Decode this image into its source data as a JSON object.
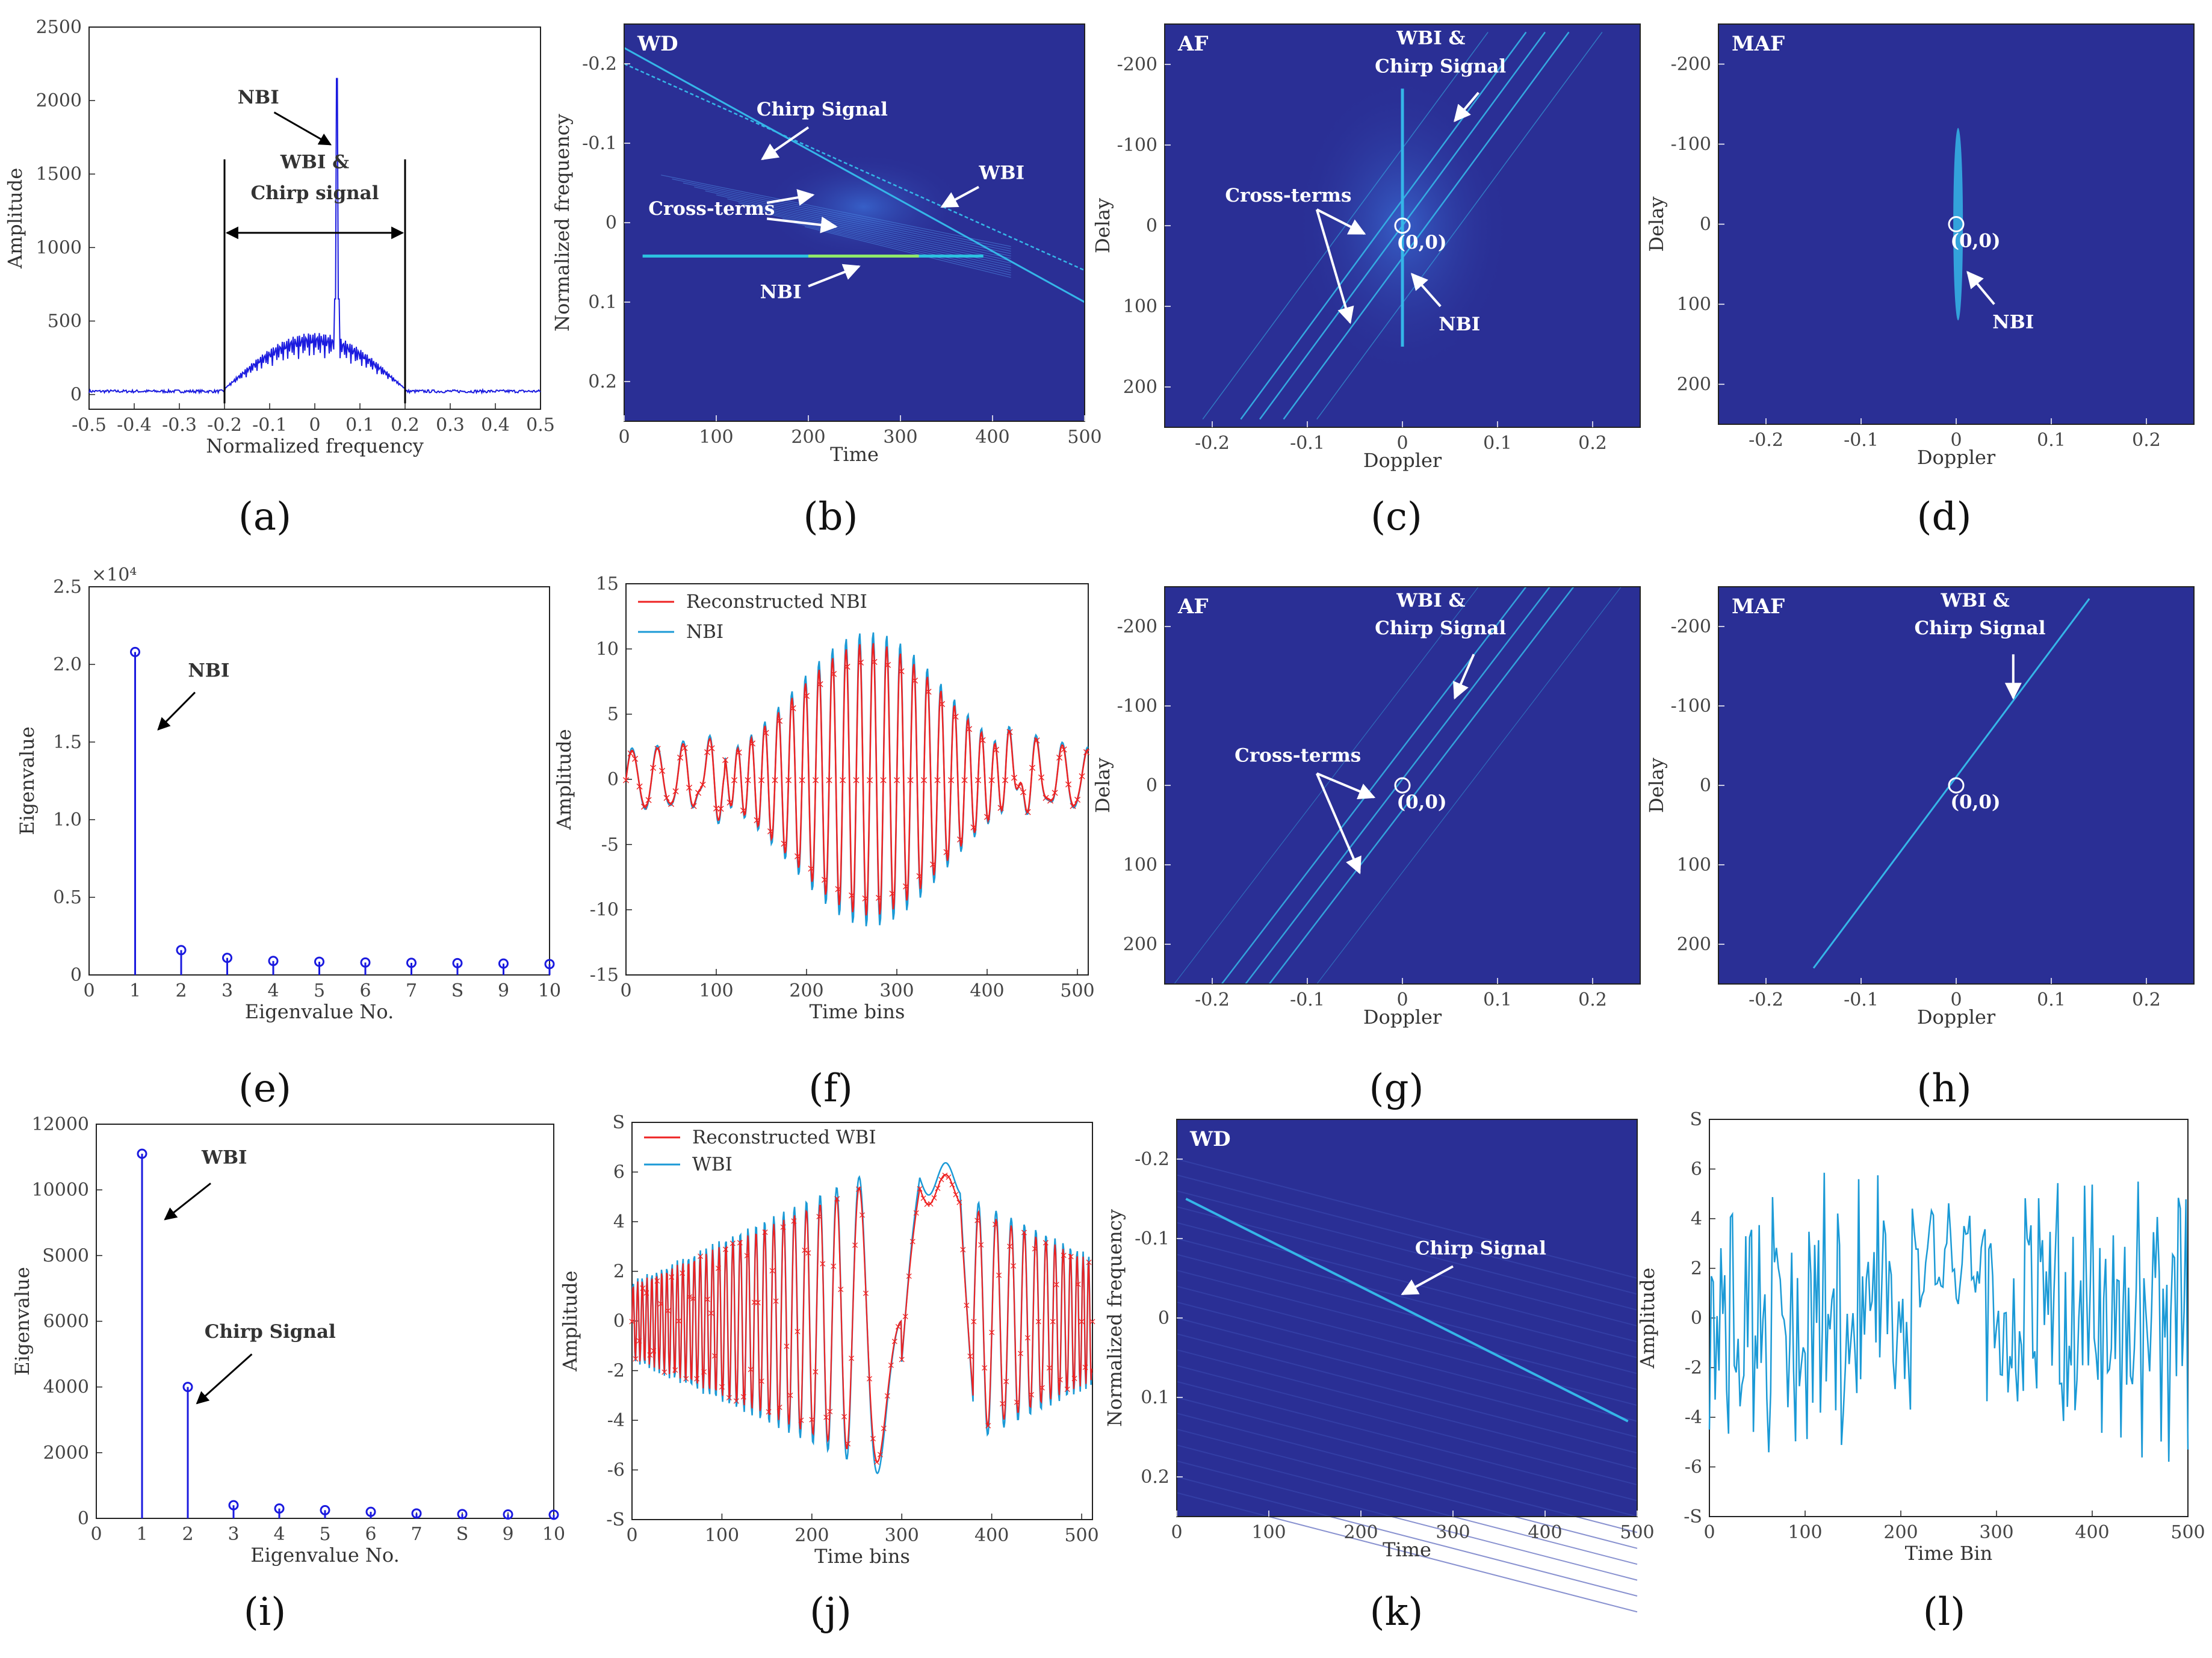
{
  "colors": {
    "blue_line": "#1a1adf",
    "cyan_line": "#1b9ad6",
    "red_line": "#ee2222",
    "map_bg": "#2a2f95",
    "map_line": "#35b6e8",
    "map_bright": "#8fe86a",
    "annot": "#ffffff"
  },
  "chart_data": [
    {
      "id": "a",
      "type": "line",
      "caption": "(a)",
      "xlabel": "Normalized frequency",
      "ylabel": "Amplitude",
      "xlim": [
        -0.5,
        0.5
      ],
      "ylim": [
        -100,
        2500
      ],
      "xticks": [
        -0.5,
        -0.4,
        -0.3,
        -0.2,
        -0.1,
        0,
        0.1,
        0.2,
        0.3,
        0.4,
        0.5
      ],
      "xtick_labels": [
        "-0.5",
        "-0.4",
        "-0.3",
        "-0.2",
        "-0.1",
        "0",
        "0.1",
        "0.2",
        "0.3",
        "0.4",
        "0.5"
      ],
      "yticks": [
        0,
        500,
        1000,
        1500,
        2000,
        2500
      ],
      "ytick_labels": [
        "0",
        "500",
        "1000",
        "1500",
        "2000",
        "2500"
      ],
      "series": [
        {
          "name": "spectrum",
          "peak_x": 0.05,
          "peak_y": 2150,
          "band": [
            -0.2,
            0.2
          ],
          "band_peak": 380,
          "noise": 20
        }
      ],
      "annotations": {
        "nbi": "NBI",
        "wbi": "WBI &",
        "chirp": "Chirp signal"
      }
    },
    {
      "id": "b",
      "type": "heatmap",
      "caption": "(b)",
      "corner": "WD",
      "xlabel": "Time",
      "ylabel": "Normalized frequency",
      "xlim": [
        0,
        500
      ],
      "ylim": [
        0.25,
        -0.25
      ],
      "xticks": [
        0,
        100,
        200,
        300,
        400,
        500
      ],
      "xtick_labels": [
        "0",
        "100",
        "200",
        "300",
        "400",
        "500"
      ],
      "yticks": [
        -0.2,
        -0.1,
        0,
        0.1,
        0.2
      ],
      "ytick_labels": [
        "-0.2",
        "-0.1",
        "0",
        "0.1",
        "0.2"
      ],
      "annotations": {
        "chirp": "Chirp Signal",
        "cross": "Cross-terms",
        "wbi": "WBI",
        "nbi": "NBI"
      }
    },
    {
      "id": "c",
      "type": "heatmap",
      "caption": "(c)",
      "corner": "AF",
      "xlabel": "Doppler",
      "ylabel": "Delay",
      "xlim": [
        -0.25,
        0.25
      ],
      "ylim": [
        -250,
        250
      ],
      "xticks": [
        -0.2,
        -0.1,
        0,
        0.1,
        0.2
      ],
      "xtick_labels": [
        "-0.2",
        "-0.1",
        "0",
        "0.1",
        "0.2"
      ],
      "yticks": [
        -200,
        -100,
        0,
        100,
        200
      ],
      "ytick_labels": [
        "-200",
        "-100",
        "0",
        "100",
        "200"
      ],
      "annotations": {
        "wbi": "WBI &",
        "chirp": "Chirp Signal",
        "cross": "Cross-terms",
        "origin": "(0,0)",
        "nbi": "NBI"
      }
    },
    {
      "id": "d",
      "type": "heatmap",
      "caption": "(d)",
      "corner": "MAF",
      "xlabel": "Doppler",
      "ylabel": "Delay",
      "xlim": [
        -0.25,
        0.25
      ],
      "ylim": [
        -250,
        250
      ],
      "xticks": [
        -0.2,
        -0.1,
        0,
        0.1,
        0.2
      ],
      "xtick_labels": [
        "-0.2",
        "-0.1",
        "0",
        "0.1",
        "0.2"
      ],
      "yticks": [
        -200,
        -100,
        0,
        100,
        200
      ],
      "ytick_labels": [
        "-200",
        "-100",
        "0",
        "100",
        "200"
      ],
      "annotations": {
        "origin": "(0,0)",
        "nbi": "NBI"
      }
    },
    {
      "id": "e",
      "type": "stem",
      "caption": "(e)",
      "xlabel": "Eigenvalue No.",
      "ylabel": "Eigenvalue",
      "exponent": "×10⁴",
      "xlim": [
        0,
        10
      ],
      "ylim": [
        0,
        25000
      ],
      "xticks": [
        0,
        1,
        2,
        3,
        4,
        5,
        6,
        7,
        8,
        9,
        10
      ],
      "xtick_labels": [
        "0",
        "1",
        "2",
        "3",
        "4",
        "5",
        "6",
        "7",
        "S",
        "9",
        "10"
      ],
      "yticks": [
        0,
        5000,
        10000,
        15000,
        20000,
        25000
      ],
      "ytick_labels": [
        "0",
        "0.5",
        "1.0",
        "1.5",
        "2.0",
        "2.5"
      ],
      "x": [
        1,
        2,
        3,
        4,
        5,
        6,
        7,
        8,
        9,
        10
      ],
      "values": [
        20800,
        1600,
        1100,
        900,
        850,
        800,
        780,
        760,
        730,
        700
      ],
      "annotations": {
        "nbi": "NBI"
      }
    },
    {
      "id": "f",
      "type": "line",
      "caption": "(f)",
      "xlabel": "Time bins",
      "ylabel": "Amplitude",
      "xlim": [
        0,
        512
      ],
      "ylim": [
        -15,
        15
      ],
      "xticks": [
        0,
        100,
        200,
        300,
        400,
        500
      ],
      "xtick_labels": [
        "0",
        "100",
        "200",
        "300",
        "400",
        "500"
      ],
      "yticks": [
        -15,
        -10,
        -5,
        0,
        5,
        10,
        15
      ],
      "ytick_labels": [
        "-15",
        "-10",
        "-5",
        "0",
        "5",
        "10",
        "15"
      ],
      "legend": [
        "Reconstructed NBI",
        "NBI"
      ],
      "envelope_peak": 10.5,
      "center": 270,
      "width": 120,
      "period": 15
    },
    {
      "id": "g",
      "type": "heatmap",
      "caption": "(g)",
      "corner": "AF",
      "xlabel": "Doppler",
      "ylabel": "Delay",
      "xlim": [
        -0.25,
        0.25
      ],
      "ylim": [
        -250,
        250
      ],
      "xticks": [
        -0.2,
        -0.1,
        0,
        0.1,
        0.2
      ],
      "xtick_labels": [
        "-0.2",
        "-0.1",
        "0",
        "0.1",
        "0.2"
      ],
      "yticks": [
        -200,
        -100,
        0,
        100,
        200
      ],
      "ytick_labels": [
        "-200",
        "-100",
        "0",
        "100",
        "200"
      ],
      "annotations": {
        "wbi": "WBI &",
        "chirp": "Chirp Signal",
        "cross": "Cross-terms",
        "origin": "(0,0)"
      }
    },
    {
      "id": "h",
      "type": "heatmap",
      "caption": "(h)",
      "corner": "MAF",
      "xlabel": "Doppler",
      "ylabel": "Delay",
      "xlim": [
        -0.25,
        0.25
      ],
      "ylim": [
        -250,
        250
      ],
      "xticks": [
        -0.2,
        -0.1,
        0,
        0.1,
        0.2
      ],
      "xtick_labels": [
        "-0.2",
        "-0.1",
        "0",
        "0.1",
        "0.2"
      ],
      "yticks": [
        -200,
        -100,
        0,
        100,
        200
      ],
      "ytick_labels": [
        "-200",
        "-100",
        "0",
        "100",
        "200"
      ],
      "annotations": {
        "wbi": "WBI &",
        "chirp": "Chirp Signal",
        "origin": "(0,0)"
      }
    },
    {
      "id": "i",
      "type": "stem",
      "caption": "(i)",
      "xlabel": "Eigenvalue No.",
      "ylabel": "Eigenvalue",
      "xlim": [
        0,
        10
      ],
      "ylim": [
        0,
        12000
      ],
      "xticks": [
        0,
        1,
        2,
        3,
        4,
        5,
        6,
        7,
        8,
        9,
        10
      ],
      "xtick_labels": [
        "0",
        "1",
        "2",
        "3",
        "4",
        "5",
        "6",
        "7",
        "S",
        "9",
        "10"
      ],
      "yticks": [
        0,
        2000,
        4000,
        6000,
        8000,
        10000,
        12000
      ],
      "ytick_labels": [
        "0",
        "2000",
        "4000",
        "6000",
        "S000",
        "10000",
        "12000"
      ],
      "x": [
        1,
        2,
        3,
        4,
        5,
        6,
        7,
        8,
        9,
        10
      ],
      "values": [
        11100,
        4000,
        400,
        300,
        250,
        200,
        150,
        130,
        120,
        110
      ],
      "annotations": {
        "wbi": "WBI",
        "chirp": "Chirp Signal"
      }
    },
    {
      "id": "j",
      "type": "line",
      "caption": "(j)",
      "xlabel": "Time bins",
      "ylabel": "Amplitude",
      "xlim": [
        0,
        512
      ],
      "ylim": [
        -8,
        8
      ],
      "xticks": [
        0,
        100,
        200,
        300,
        400,
        500
      ],
      "xtick_labels": [
        "0",
        "100",
        "200",
        "300",
        "400",
        "500"
      ],
      "yticks": [
        -8,
        -6,
        -4,
        -2,
        0,
        2,
        4,
        6,
        8
      ],
      "ytick_labels": [
        "-S",
        "-6",
        "-4",
        "-2",
        "0",
        "2",
        "4",
        "6",
        "S"
      ],
      "legend": [
        "Reconstructed WBI",
        "WBI"
      ]
    },
    {
      "id": "k",
      "type": "heatmap",
      "caption": "(k)",
      "corner": "WD",
      "xlabel": "Time",
      "ylabel": "Normalized frequency",
      "xlim": [
        0,
        500
      ],
      "ylim": [
        0.25,
        -0.25
      ],
      "xticks": [
        0,
        100,
        200,
        300,
        400,
        500
      ],
      "xtick_labels": [
        "0",
        "100",
        "200",
        "300",
        "400",
        "500"
      ],
      "yticks": [
        -0.2,
        -0.1,
        0,
        0.1,
        0.2
      ],
      "ytick_labels": [
        "-0.2",
        "-0.1",
        "0",
        "0.1",
        "0.2"
      ],
      "annotations": {
        "chirp": "Chirp Signal"
      }
    },
    {
      "id": "l",
      "type": "line",
      "caption": "(l)",
      "xlabel": "Time Bin",
      "ylabel": "Amplitude",
      "xlim": [
        0,
        500
      ],
      "ylim": [
        -8,
        8
      ],
      "xticks": [
        0,
        100,
        200,
        300,
        400,
        500
      ],
      "xtick_labels": [
        "0",
        "100",
        "200",
        "300",
        "400",
        "500"
      ],
      "yticks": [
        -8,
        -6,
        -4,
        -2,
        0,
        2,
        4,
        6,
        8
      ],
      "ytick_labels": [
        "-S",
        "-6",
        "-4",
        "-2",
        "0",
        "2",
        "4",
        "6",
        "S"
      ]
    }
  ]
}
